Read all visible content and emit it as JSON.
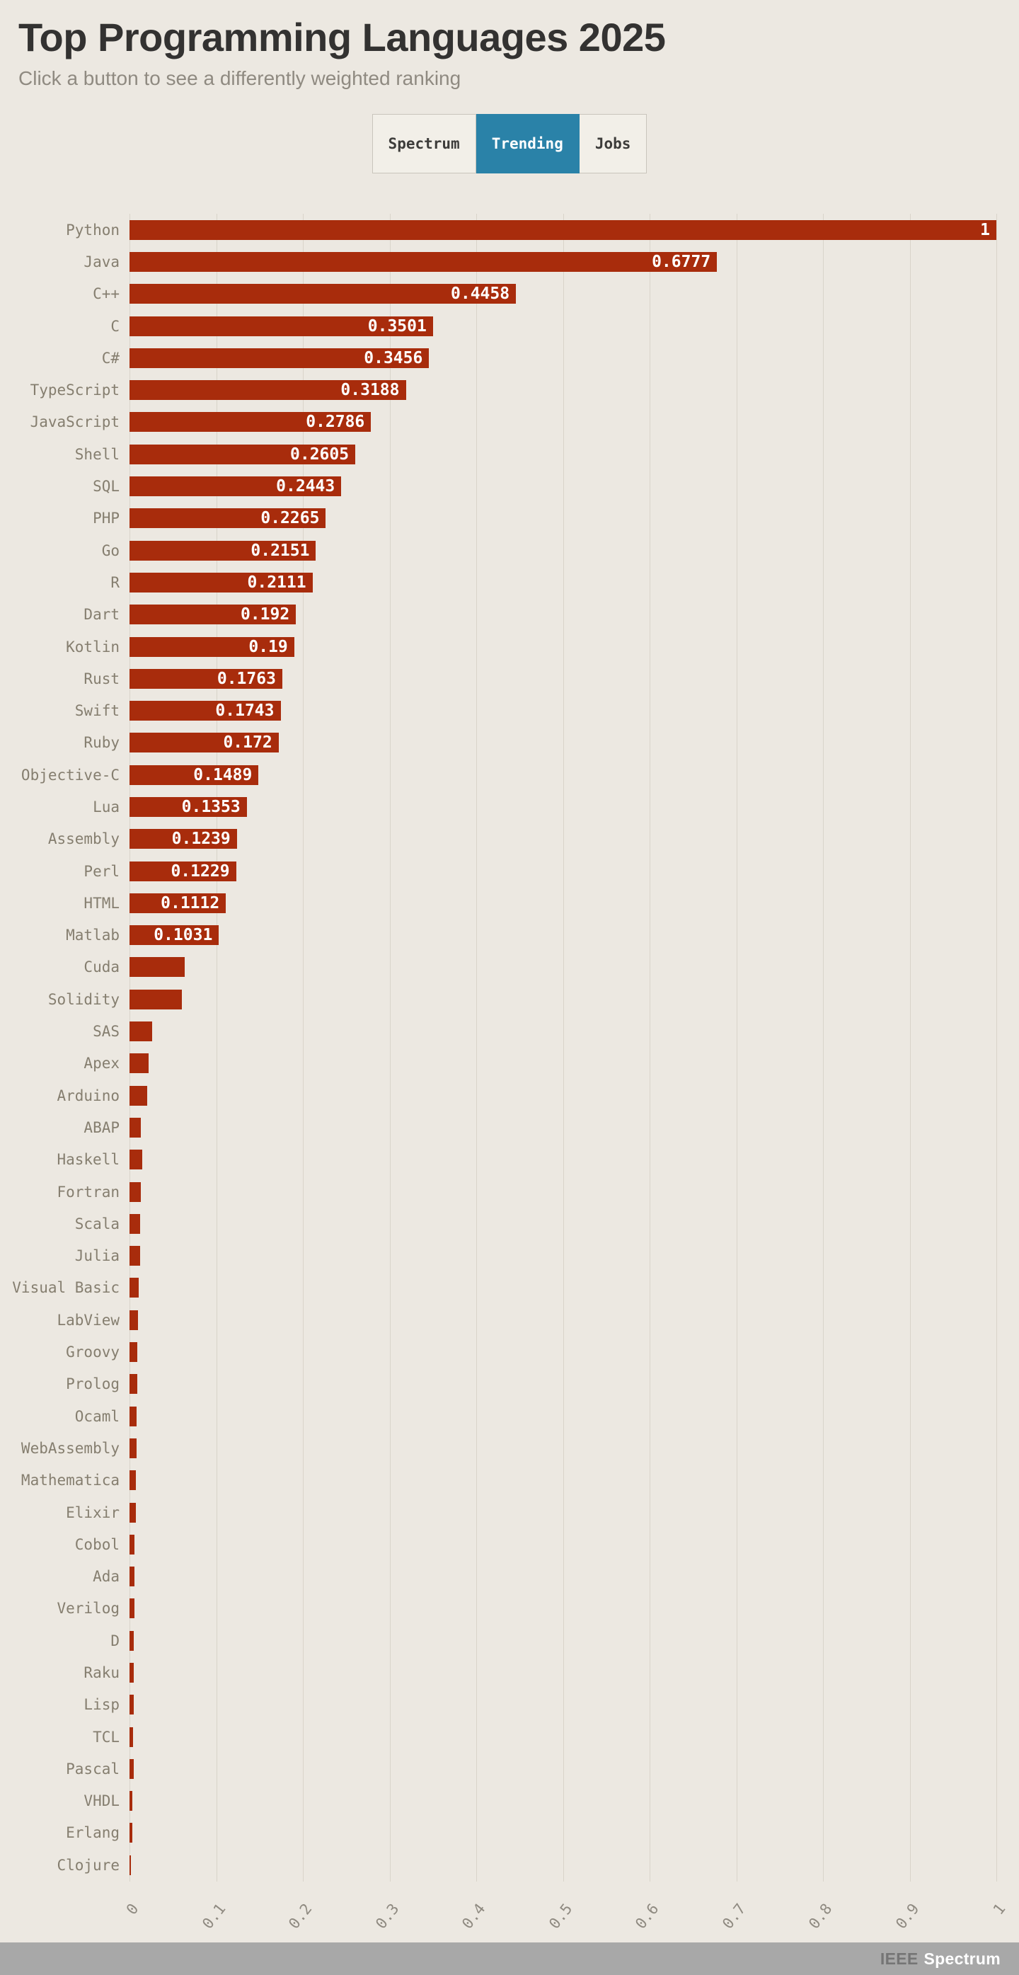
{
  "header": {
    "title": "Top Programming Languages 2025",
    "subtitle": "Click a button to see a differently weighted ranking"
  },
  "buttons": [
    {
      "label": "Spectrum",
      "active": false
    },
    {
      "label": "Trending",
      "active": true
    },
    {
      "label": "Jobs",
      "active": false
    }
  ],
  "colors": {
    "background": "#ece8e1",
    "bar": "#a82c0c",
    "active_button": "#2a82a8",
    "grid": "#d9d4ca",
    "footer": "#a8a8a8"
  },
  "footer": {
    "brand_ieee": "IEEE",
    "brand_spectrum": "Spectrum"
  },
  "chart_data": {
    "type": "bar",
    "orientation": "horizontal",
    "title": "Top Programming Languages 2025",
    "xlabel": "",
    "ylabel": "",
    "xlim": [
      0,
      1
    ],
    "grid": true,
    "x_ticks": [
      "0",
      "0.1",
      "0.2",
      "0.3",
      "0.4",
      "0.5",
      "0.6",
      "0.7",
      "0.8",
      "0.9",
      "1"
    ],
    "items": [
      {
        "name": "Python",
        "value": 1,
        "label": "1"
      },
      {
        "name": "Java",
        "value": 0.6777,
        "label": "0.6777"
      },
      {
        "name": "C++",
        "value": 0.4458,
        "label": "0.4458"
      },
      {
        "name": "C",
        "value": 0.3501,
        "label": "0.3501"
      },
      {
        "name": "C#",
        "value": 0.3456,
        "label": "0.3456"
      },
      {
        "name": "TypeScript",
        "value": 0.3188,
        "label": "0.3188"
      },
      {
        "name": "JavaScript",
        "value": 0.2786,
        "label": "0.2786"
      },
      {
        "name": "Shell",
        "value": 0.2605,
        "label": "0.2605"
      },
      {
        "name": "SQL",
        "value": 0.2443,
        "label": "0.2443"
      },
      {
        "name": "PHP",
        "value": 0.2265,
        "label": "0.2265"
      },
      {
        "name": "Go",
        "value": 0.2151,
        "label": "0.2151"
      },
      {
        "name": "R",
        "value": 0.2111,
        "label": "0.2111"
      },
      {
        "name": "Dart",
        "value": 0.192,
        "label": "0.192"
      },
      {
        "name": "Kotlin",
        "value": 0.19,
        "label": "0.19"
      },
      {
        "name": "Rust",
        "value": 0.1763,
        "label": "0.1763"
      },
      {
        "name": "Swift",
        "value": 0.1743,
        "label": "0.1743"
      },
      {
        "name": "Ruby",
        "value": 0.172,
        "label": "0.172"
      },
      {
        "name": "Objective-C",
        "value": 0.1489,
        "label": "0.1489"
      },
      {
        "name": "Lua",
        "value": 0.1353,
        "label": "0.1353"
      },
      {
        "name": "Assembly",
        "value": 0.1239,
        "label": "0.1239"
      },
      {
        "name": "Perl",
        "value": 0.1229,
        "label": "0.1229"
      },
      {
        "name": "HTML",
        "value": 0.1112,
        "label": "0.1112"
      },
      {
        "name": "Matlab",
        "value": 0.1031,
        "label": "0.1031"
      },
      {
        "name": "Cuda",
        "value": 0.064,
        "label": ""
      },
      {
        "name": "Solidity",
        "value": 0.06,
        "label": ""
      },
      {
        "name": "SAS",
        "value": 0.026,
        "label": ""
      },
      {
        "name": "Apex",
        "value": 0.022,
        "label": ""
      },
      {
        "name": "Arduino",
        "value": 0.02,
        "label": ""
      },
      {
        "name": "ABAP",
        "value": 0.013,
        "label": ""
      },
      {
        "name": "Haskell",
        "value": 0.015,
        "label": ""
      },
      {
        "name": "Fortran",
        "value": 0.013,
        "label": ""
      },
      {
        "name": "Scala",
        "value": 0.012,
        "label": ""
      },
      {
        "name": "Julia",
        "value": 0.012,
        "label": ""
      },
      {
        "name": "Visual Basic",
        "value": 0.011,
        "label": ""
      },
      {
        "name": "LabView",
        "value": 0.01,
        "label": ""
      },
      {
        "name": "Groovy",
        "value": 0.009,
        "label": ""
      },
      {
        "name": "Prolog",
        "value": 0.009,
        "label": ""
      },
      {
        "name": "Ocaml",
        "value": 0.008,
        "label": ""
      },
      {
        "name": "WebAssembly",
        "value": 0.008,
        "label": ""
      },
      {
        "name": "Mathematica",
        "value": 0.007,
        "label": ""
      },
      {
        "name": "Elixir",
        "value": 0.007,
        "label": ""
      },
      {
        "name": "Cobol",
        "value": 0.006,
        "label": ""
      },
      {
        "name": "Ada",
        "value": 0.006,
        "label": ""
      },
      {
        "name": "Verilog",
        "value": 0.006,
        "label": ""
      },
      {
        "name": "D",
        "value": 0.005,
        "label": ""
      },
      {
        "name": "Raku",
        "value": 0.005,
        "label": ""
      },
      {
        "name": "Lisp",
        "value": 0.005,
        "label": ""
      },
      {
        "name": "TCL",
        "value": 0.004,
        "label": ""
      },
      {
        "name": "Pascal",
        "value": 0.005,
        "label": ""
      },
      {
        "name": "VHDL",
        "value": 0.003,
        "label": ""
      },
      {
        "name": "Erlang",
        "value": 0.003,
        "label": ""
      },
      {
        "name": "Clojure",
        "value": 0.002,
        "label": ""
      }
    ]
  }
}
